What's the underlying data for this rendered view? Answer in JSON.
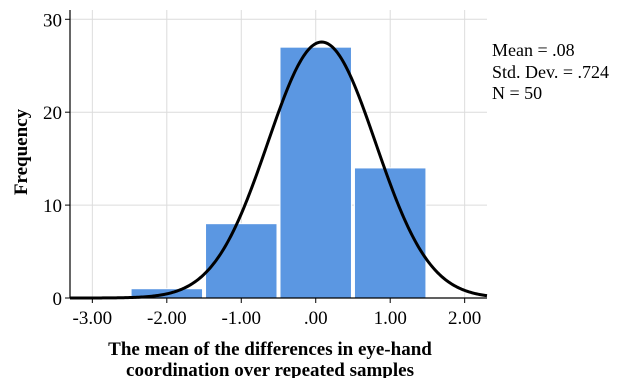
{
  "chart_data": {
    "type": "bar",
    "ylabel": "Frequency",
    "xlabel_lines": [
      "The mean of the differences in eye-hand",
      "coordination over repeated samples"
    ],
    "xlim": [
      -3.3,
      2.3
    ],
    "ylim": [
      0,
      31
    ],
    "x_ticks": [
      {
        "value": -3,
        "label": "-3.00"
      },
      {
        "value": -2,
        "label": "-2.00"
      },
      {
        "value": -1,
        "label": "-1.00"
      },
      {
        "value": 0,
        "label": ".00"
      },
      {
        "value": 1,
        "label": "1.00"
      },
      {
        "value": 2,
        "label": "2.00"
      }
    ],
    "y_ticks": [
      {
        "value": 0,
        "label": "0"
      },
      {
        "value": 10,
        "label": "10"
      },
      {
        "value": 20,
        "label": "20"
      },
      {
        "value": 30,
        "label": "30"
      }
    ],
    "bins": [
      {
        "start": -2.5,
        "end": -1.5,
        "count": 1
      },
      {
        "start": -1.5,
        "end": -0.5,
        "count": 8
      },
      {
        "start": -0.5,
        "end": 0.5,
        "count": 27
      },
      {
        "start": 0.5,
        "end": 1.5,
        "count": 14
      }
    ],
    "normal_curve": {
      "mean": 0.08,
      "sd": 0.724,
      "n": 50,
      "bin_width": 1
    },
    "stats_lines": [
      "Mean = .08",
      "Std. Dev. = .724",
      "N = 50"
    ],
    "grid": true,
    "bar_color": "#5b97e2",
    "curve_color": "#000000"
  }
}
